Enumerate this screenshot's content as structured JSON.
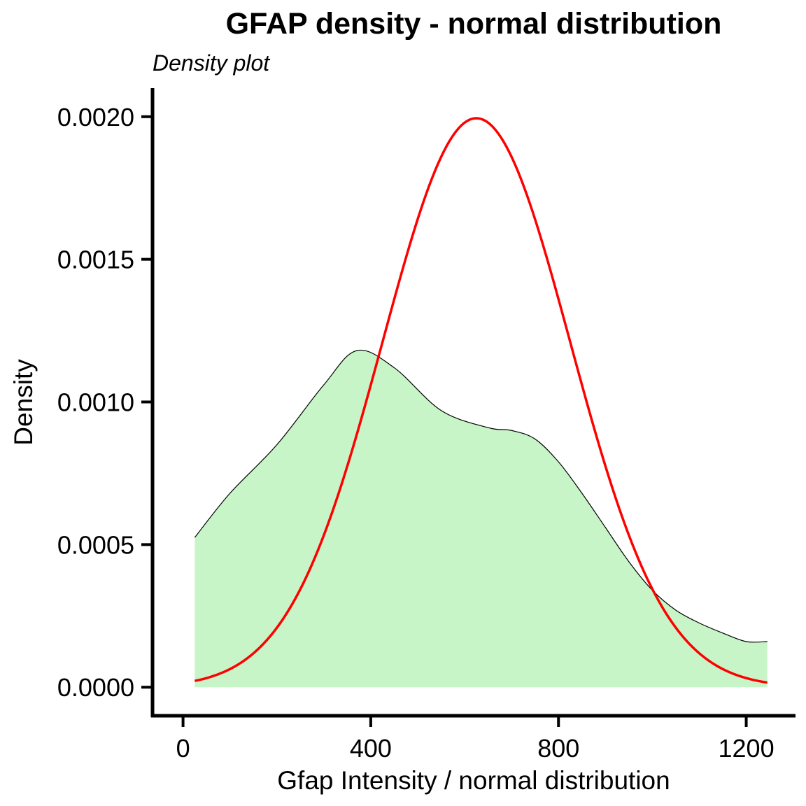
{
  "chart_data": {
    "type": "area",
    "title": "GFAP density - normal distribution",
    "subtitle": "Density plot",
    "xlabel": "Gfap Intensity / normal distribution",
    "ylabel": "Density",
    "xlim": [
      -65,
      1305
    ],
    "ylim": [
      -0.0001,
      0.0021
    ],
    "x_ticks": [
      0,
      400,
      800,
      1200
    ],
    "x_tick_labels": [
      "0",
      "400",
      "800",
      "1200"
    ],
    "y_ticks": [
      0,
      0.0005,
      0.001,
      0.0015,
      0.002
    ],
    "y_tick_labels": [
      "0.0000",
      "0.0005",
      "0.0010",
      "0.0015",
      "0.0020"
    ],
    "grid": false,
    "series": [
      {
        "kind": "density-area",
        "fill": "#c8f5c8",
        "stroke": "#000000",
        "x": [
          25,
          100,
          200,
          300,
          370,
          450,
          550,
          650,
          700,
          750,
          800,
          850,
          900,
          950,
          1000,
          1050,
          1100,
          1150,
          1200,
          1245
        ],
        "y": [
          0.000525,
          0.00068,
          0.00085,
          0.00106,
          0.00118,
          0.00112,
          0.00097,
          0.00091,
          0.0009,
          0.00087,
          0.00079,
          0.00068,
          0.00056,
          0.00044,
          0.00034,
          0.00027,
          0.000225,
          0.00019,
          0.00016,
          0.00016
        ]
      },
      {
        "kind": "normal-curve",
        "stroke": "#ff0000",
        "mean": 625,
        "sd": 200,
        "x_range": [
          25,
          1245
        ]
      }
    ]
  }
}
